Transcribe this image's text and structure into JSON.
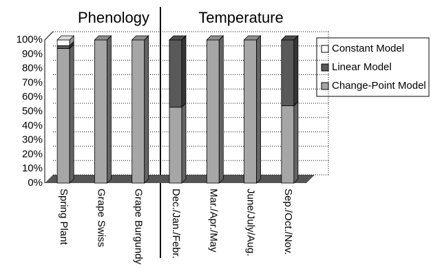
{
  "chart_data": {
    "type": "stacked-bar-3d",
    "group_labels": [
      "Phenology",
      "Temperature"
    ],
    "categories": [
      "Spring Plant",
      "Grape Swiss",
      "Grape Burgundy",
      "Dec./Jan./Febr.",
      "Mar./Apr./May",
      "June/July/Aug.",
      "Sep./Oct./Nov."
    ],
    "series": [
      {
        "name": "Change-Point Model",
        "color": "#a6a6a6",
        "values": [
          94,
          100,
          100,
          53,
          100,
          100,
          54
        ]
      },
      {
        "name": "Linear Model",
        "color": "#595959",
        "values": [
          2,
          0,
          0,
          47,
          0,
          0,
          46
        ]
      },
      {
        "name": "Constant Model",
        "color": "#ffffff",
        "values": [
          4,
          0,
          0,
          0,
          0,
          0,
          0
        ]
      }
    ],
    "ylim": [
      0,
      100
    ],
    "yticks": [
      {
        "value": 0,
        "label": "0%"
      },
      {
        "value": 10,
        "label": "10%"
      },
      {
        "value": 20,
        "label": "20%"
      },
      {
        "value": 30,
        "label": "30%"
      },
      {
        "value": 40,
        "label": "40%"
      },
      {
        "value": 50,
        "label": "50%"
      },
      {
        "value": 60,
        "label": "60%"
      },
      {
        "value": 70,
        "label": "70%"
      },
      {
        "value": 80,
        "label": "80%"
      },
      {
        "value": 90,
        "label": "90%"
      },
      {
        "value": 100,
        "label": "100%"
      }
    ],
    "grid": true
  }
}
